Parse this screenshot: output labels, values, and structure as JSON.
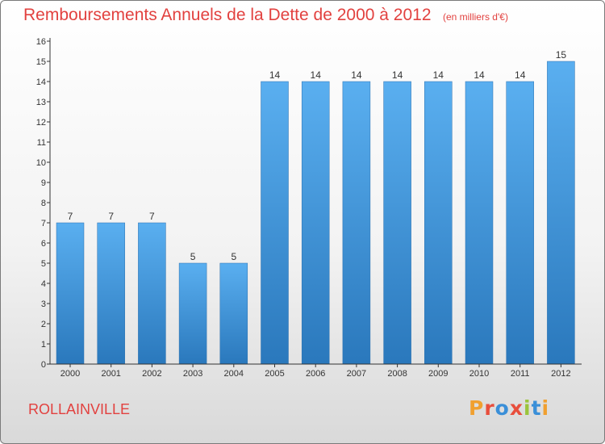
{
  "header": {
    "title": "Remboursements Annuels de la Dette de 2000 à 2012",
    "subtitle": "(en milliers d'€)"
  },
  "footer": {
    "town": "ROLLAINVILLE",
    "logo": "Proxiti",
    "logo_colors": [
      "#f0a030",
      "#e84e3c",
      "#3a8fd8",
      "#e84e3c",
      "#9bc43c",
      "#3a8fd8",
      "#f0a030"
    ]
  },
  "colors": {
    "title": "#e2413f",
    "bar_light": "#5aaff0",
    "bar_dark": "#2a78bc",
    "axis": "#333333"
  },
  "chart_data": {
    "type": "bar",
    "title": "Remboursements Annuels de la Dette de 2000 à 2012",
    "subtitle": "(en milliers d'€)",
    "categories": [
      "2000",
      "2001",
      "2002",
      "2003",
      "2004",
      "2005",
      "2006",
      "2007",
      "2008",
      "2009",
      "2010",
      "2011",
      "2012"
    ],
    "values": [
      7,
      7,
      7,
      5,
      5,
      14,
      14,
      14,
      14,
      14,
      14,
      14,
      15
    ],
    "yticks": [
      0,
      1,
      2,
      3,
      4,
      5,
      6,
      7,
      8,
      9,
      10,
      11,
      12,
      13,
      14,
      15,
      16
    ],
    "ylim": [
      0,
      16
    ],
    "xlabel": "",
    "ylabel": "",
    "grid": false,
    "legend": "none"
  }
}
